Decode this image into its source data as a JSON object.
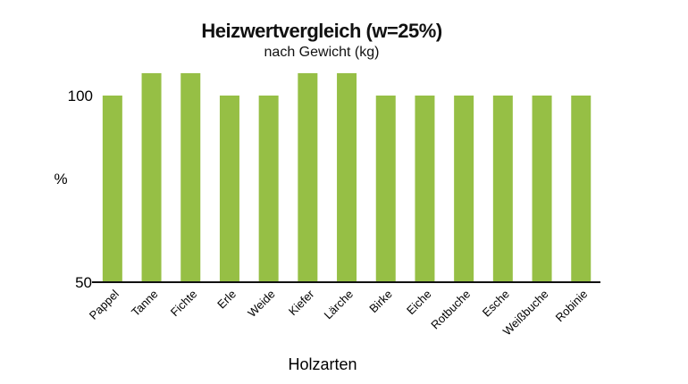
{
  "chart_data": {
    "type": "bar",
    "title": "Heizwertvergleich (w=25%)",
    "subtitle": "nach Gewicht (kg)",
    "xlabel": "Holzarten",
    "ylabel": "%",
    "categories": [
      "Pappel",
      "Tanne",
      "Fichte",
      "Erle",
      "Weide",
      "Kiefer",
      "Lärche",
      "Birke",
      "Eiche",
      "Rotbuche",
      "Esche",
      "Weißbuche",
      "Robinie"
    ],
    "values": [
      100,
      106,
      106,
      100,
      100,
      106,
      106,
      100,
      100,
      100,
      100,
      100,
      100
    ],
    "yticks": [
      "50",
      "100"
    ],
    "ylim": [
      50,
      112
    ],
    "grid": false,
    "bar_color": "#96bf45"
  }
}
